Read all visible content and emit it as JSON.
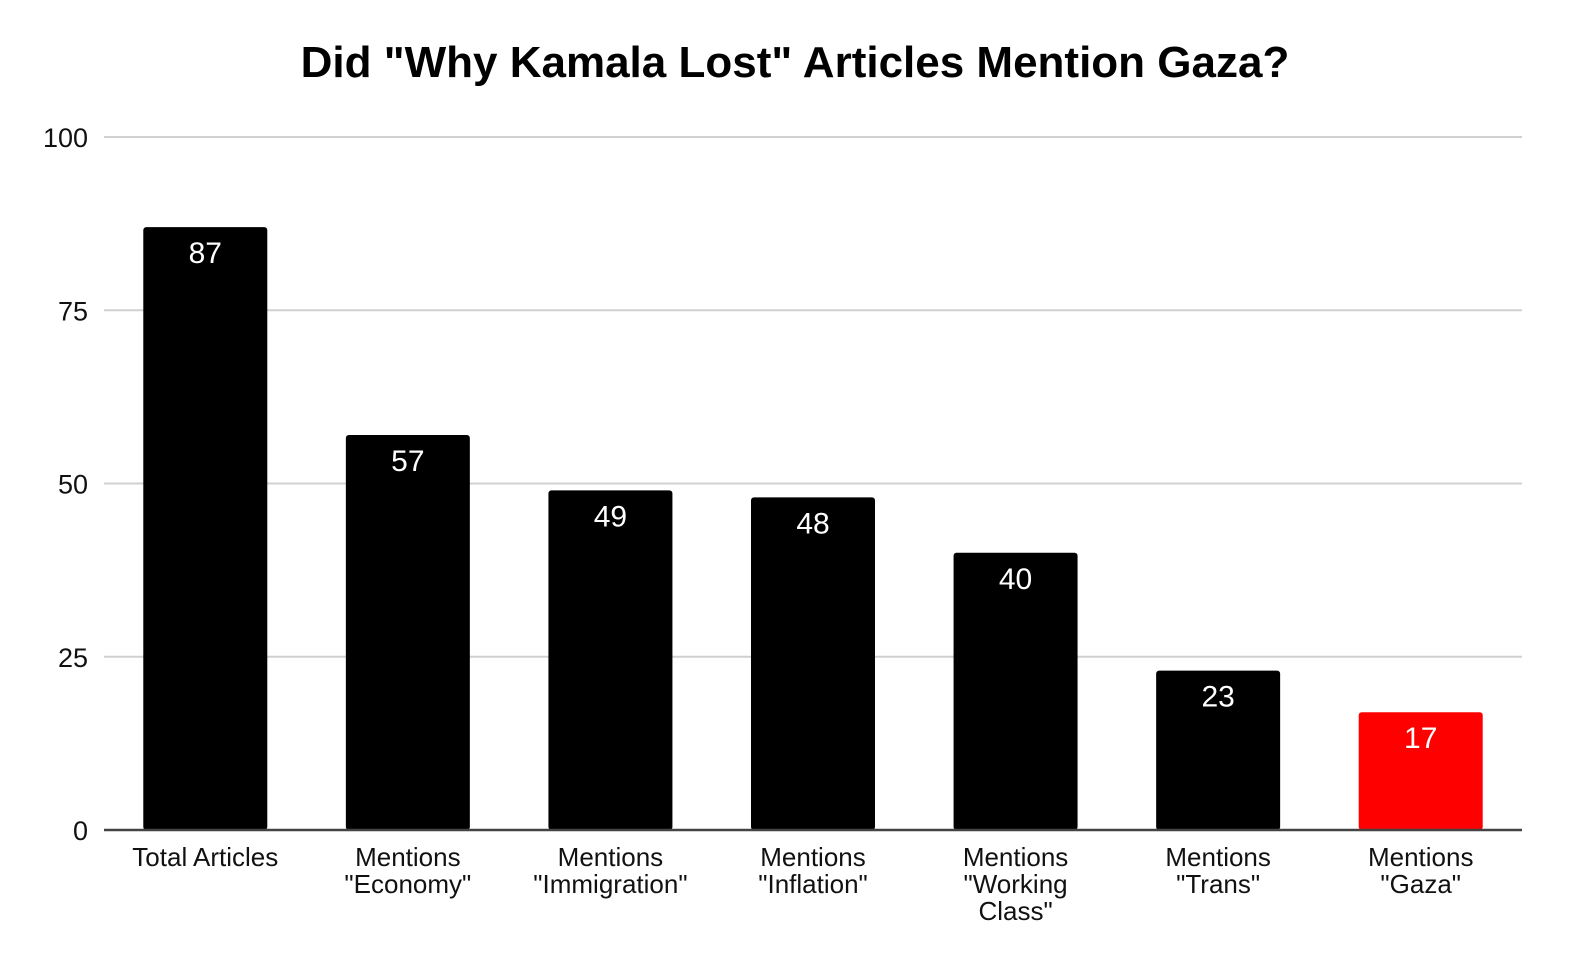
{
  "chart_data": {
    "type": "bar",
    "title": "Did \"Why Kamala Lost\" Articles Mention Gaza?",
    "xlabel": "",
    "ylabel": "",
    "ylim": [
      0,
      100
    ],
    "yticks": [
      0,
      25,
      50,
      75,
      100
    ],
    "grid": true,
    "legend": "none",
    "categories": [
      [
        "Total Articles"
      ],
      [
        "Mentions",
        "\"Economy\""
      ],
      [
        "Mentions",
        "\"Immigration\""
      ],
      [
        "Mentions",
        "\"Inflation\""
      ],
      [
        "Mentions",
        "\"Working",
        "Class\""
      ],
      [
        "Mentions",
        "\"Trans\""
      ],
      [
        "Mentions",
        "\"Gaza\""
      ]
    ],
    "values": [
      87,
      57,
      49,
      48,
      40,
      23,
      17
    ],
    "colors": [
      "#000000",
      "#000000",
      "#000000",
      "#000000",
      "#000000",
      "#000000",
      "#ff0000"
    ],
    "data_labels": [
      "87",
      "57",
      "49",
      "48",
      "40",
      "23",
      "17"
    ]
  }
}
